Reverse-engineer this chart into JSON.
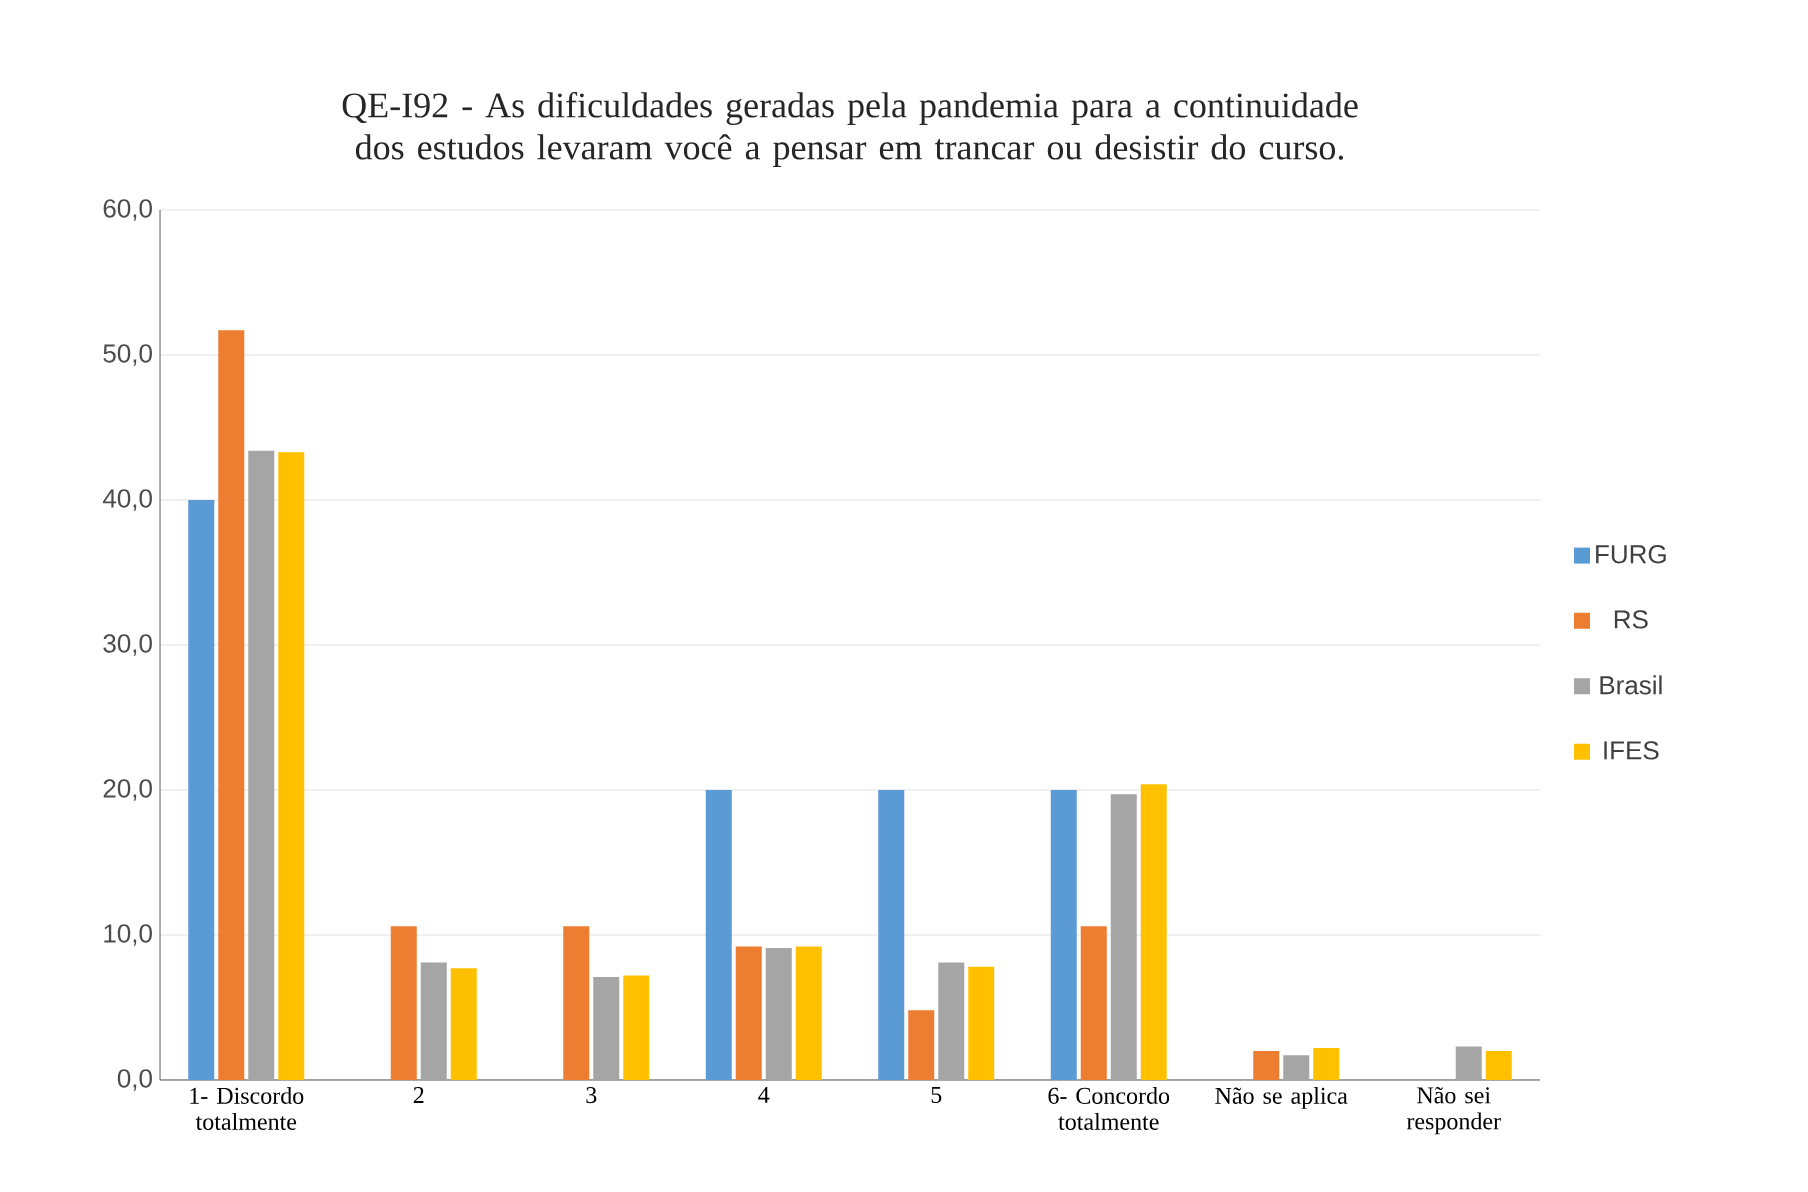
{
  "chart_data": {
    "type": "bar",
    "title": "QE-I92 - As dificuldades geradas pela pandemia para a continuidade dos estudos levaram você a pensar em  trancar ou desistir do curso.",
    "categories": [
      "1- Discordo totalmente",
      "2",
      "3",
      "4",
      "5",
      "6- Concordo totalmente",
      "Não se aplica",
      "Não sei responder"
    ],
    "series": [
      {
        "name": "FURG",
        "color": "#5b9bd5",
        "values": [
          40.0,
          0,
          0,
          20.0,
          20.0,
          20.0,
          0,
          0
        ]
      },
      {
        "name": "RS",
        "color": "#ed7d31",
        "values": [
          51.7,
          10.6,
          10.6,
          9.2,
          4.8,
          10.6,
          2.0,
          0
        ]
      },
      {
        "name": "Brasil",
        "color": "#a5a5a5",
        "values": [
          43.4,
          8.1,
          7.1,
          9.1,
          8.1,
          19.7,
          1.7,
          2.3
        ]
      },
      {
        "name": "IFES",
        "color": "#ffc000",
        "values": [
          43.3,
          7.7,
          7.2,
          9.2,
          7.8,
          20.4,
          2.2,
          2.0
        ]
      }
    ],
    "ylim": [
      0,
      60
    ],
    "yticks": [
      {
        "value": 0,
        "label": "0,0"
      },
      {
        "value": 10,
        "label": "10,0"
      },
      {
        "value": 20,
        "label": "20,0"
      },
      {
        "value": 30,
        "label": "30,0"
      },
      {
        "value": 40,
        "label": "40,0"
      },
      {
        "value": 50,
        "label": "50,0"
      },
      {
        "value": 60,
        "label": "60,0"
      }
    ],
    "grid": "y",
    "legend": "right"
  }
}
